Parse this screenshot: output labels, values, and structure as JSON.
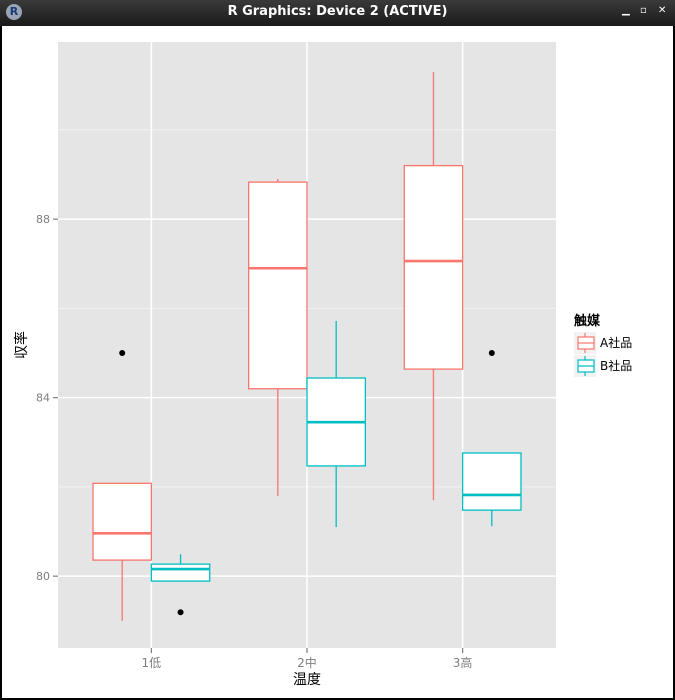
{
  "window": {
    "title": "R Graphics: Device 2 (ACTIVE)",
    "icon": "r-logo-icon",
    "buttons": [
      "minimize-icon",
      "maximize-icon",
      "close-icon"
    ]
  },
  "chart_data": {
    "type": "boxplot",
    "title": "",
    "xlabel": "温度",
    "ylabel": "収率",
    "categories": [
      "1低",
      "2中",
      "3高"
    ],
    "yticks": [
      80,
      84,
      88
    ],
    "ylim": [
      78.39,
      91.97
    ],
    "grid": true,
    "legend": {
      "title": "触媒",
      "placement": "right"
    },
    "series": [
      {
        "name": "A社品",
        "color": "#F8766D",
        "boxes": [
          {
            "low": 79.0,
            "q1": 80.36,
            "median": 80.96,
            "q3": 82.08,
            "high": 82.08,
            "outliers": [
              85.0
            ]
          },
          {
            "low": 81.8,
            "q1": 84.2,
            "median": 86.9,
            "q3": 88.83,
            "high": 88.9,
            "outliers": []
          },
          {
            "low": 81.7,
            "q1": 84.64,
            "median": 87.06,
            "q3": 89.2,
            "high": 91.3,
            "outliers": []
          }
        ]
      },
      {
        "name": "B社品",
        "color": "#00BFC4",
        "boxes": [
          {
            "low": 79.89,
            "q1": 79.89,
            "median": 80.16,
            "q3": 80.27,
            "high": 80.49,
            "outliers": [
              79.19
            ]
          },
          {
            "low": 81.1,
            "q1": 82.47,
            "median": 83.45,
            "q3": 84.44,
            "high": 85.72,
            "outliers": []
          },
          {
            "low": 81.12,
            "q1": 81.48,
            "median": 81.82,
            "q3": 82.76,
            "high": 82.76,
            "outliers": [
              85.0
            ]
          }
        ]
      }
    ]
  }
}
